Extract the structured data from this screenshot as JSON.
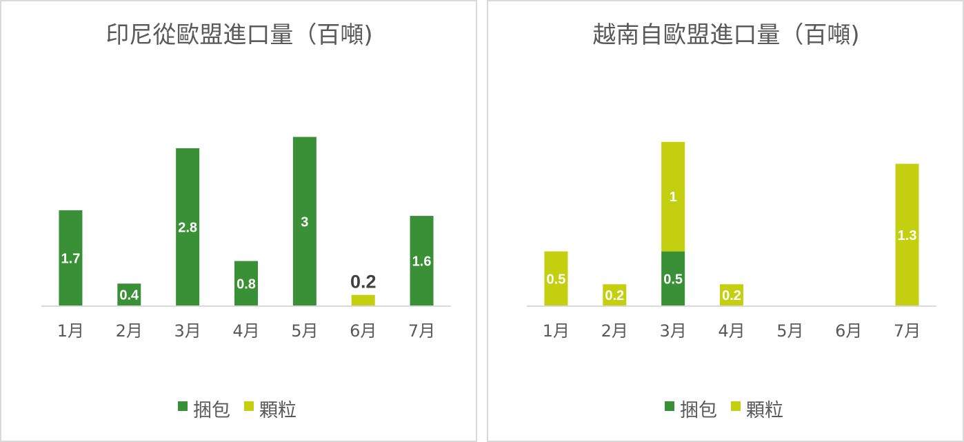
{
  "colors": {
    "bale": "#3a9036",
    "granule": "#c4cf10",
    "axis": "#d9d9d9",
    "text": "#595959"
  },
  "chart_data": [
    {
      "type": "bar",
      "stacked": true,
      "title": "印尼從歐盟進口量（百噸)",
      "categories": [
        "1月",
        "2月",
        "3月",
        "4月",
        "5月",
        "6月",
        "7月"
      ],
      "series": [
        {
          "name": "捆包",
          "color": "#3a9036",
          "values": [
            1.7,
            0.4,
            2.8,
            0.8,
            3,
            0,
            1.6
          ]
        },
        {
          "name": "顆粒",
          "color": "#c4cf10",
          "values": [
            0,
            0,
            0,
            0,
            0,
            0.2,
            0
          ]
        }
      ],
      "data_labels": [
        {
          "category": "1月",
          "series": "捆包",
          "text": "1.7"
        },
        {
          "category": "2月",
          "series": "捆包",
          "text": "0.4"
        },
        {
          "category": "3月",
          "series": "捆包",
          "text": "2.8"
        },
        {
          "category": "4月",
          "series": "捆包",
          "text": "0.8"
        },
        {
          "category": "5月",
          "series": "捆包",
          "text": "3"
        },
        {
          "category": "6月",
          "series": "顆粒",
          "text": "0.2",
          "outside": true
        },
        {
          "category": "7月",
          "series": "捆包",
          "text": "1.6"
        }
      ],
      "ylim": [
        0,
        3.3
      ],
      "grid": false,
      "legend": "bottom"
    },
    {
      "type": "bar",
      "stacked": true,
      "title": "越南自歐盟進口量（百噸)",
      "categories": [
        "1月",
        "2月",
        "3月",
        "4月",
        "5月",
        "6月",
        "7月"
      ],
      "series": [
        {
          "name": "捆包",
          "color": "#3a9036",
          "values": [
            0,
            0,
            0.5,
            0,
            0,
            0,
            0
          ]
        },
        {
          "name": "顆粒",
          "color": "#c4cf10",
          "values": [
            0.5,
            0.2,
            1,
            0.2,
            0,
            0,
            1.3
          ]
        }
      ],
      "data_labels": [
        {
          "category": "1月",
          "series": "顆粒",
          "text": "0.5"
        },
        {
          "category": "2月",
          "series": "顆粒",
          "text": "0.2"
        },
        {
          "category": "3月",
          "series": "捆包",
          "text": "0.5"
        },
        {
          "category": "3月",
          "series": "顆粒",
          "text": "1"
        },
        {
          "category": "4月",
          "series": "顆粒",
          "text": "0.2"
        },
        {
          "category": "7月",
          "series": "顆粒",
          "text": "1.3"
        }
      ],
      "ylim": [
        0,
        1.7
      ],
      "grid": false,
      "legend": "bottom"
    }
  ]
}
